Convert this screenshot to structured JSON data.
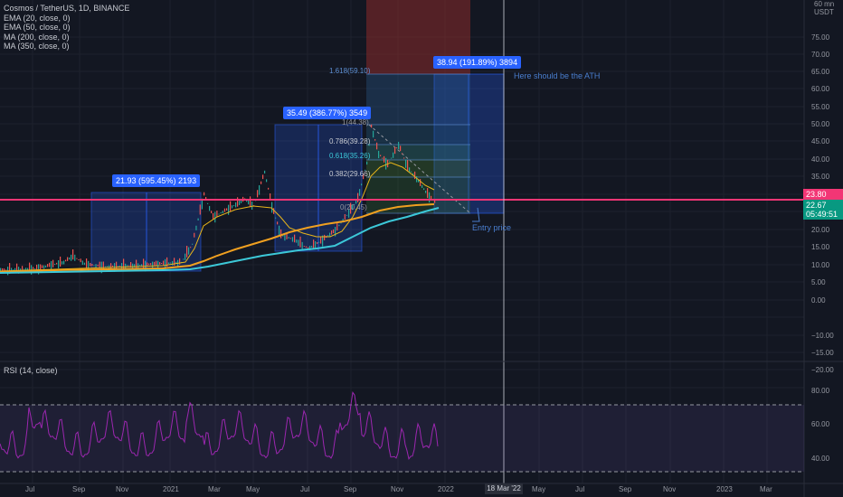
{
  "header": {
    "symbol_line": "Cosmos / TetherUS, 1D, BINANCE",
    "indicators": [
      "EMA (20, close, 0)",
      "EMA (50, close, 0)",
      "MA (200, close, 0)",
      "MA (350, close, 0)"
    ],
    "currency_unit": "60 mn\nUSDT",
    "rsi_label": "RSI (14, close)"
  },
  "price_axis": {
    "ticks": [
      "75.00",
      "70.00",
      "65.00",
      "60.00",
      "55.00",
      "50.00",
      "45.00",
      "40.00",
      "35.00",
      "30.00",
      "25.00",
      "20.00",
      "15.00",
      "10.00",
      "5.00",
      "0.00",
      "−10.00",
      "−15.00",
      "−20.00"
    ],
    "last_price": "22.67",
    "countdown": "05:49:51",
    "horizontal_line_price": "23.80"
  },
  "rsi_axis": {
    "ticks": [
      "80.00",
      "60.00",
      "40.00"
    ]
  },
  "time_axis": {
    "ticks": [
      "Jul",
      "Sep",
      "Nov",
      "2021",
      "Mar",
      "May",
      "Jul",
      "Sep",
      "Nov",
      "2022",
      "May",
      "Jul",
      "Sep",
      "Nov",
      "2023",
      "Mar"
    ],
    "cursor_date": "18 Mar '22"
  },
  "measure_boxes": [
    {
      "label": "21.93 (595.45%) 2193"
    },
    {
      "label": "35.49 (386.77%) 3549"
    },
    {
      "label": "38.94 (191.89%) 3894"
    }
  ],
  "fib_levels": [
    "1.618(59.10)",
    "1(44.38)",
    "0.786(39.28)",
    "0.618(35.26)",
    "0.382(29.66)",
    "0(20.45)"
  ],
  "annotations": {
    "ath_note": "Here should be the ATH",
    "entry_note": "Entry price"
  },
  "colors": {
    "background": "#131722",
    "horizontal_line": "#f23675",
    "last_price_badge": "#089981",
    "measure_badge": "#2962ff",
    "ema20": "#e8b51a",
    "ma200": "#f0a020",
    "ma350": "#3cc8d8",
    "rsi_line": "#9c27b0"
  }
}
